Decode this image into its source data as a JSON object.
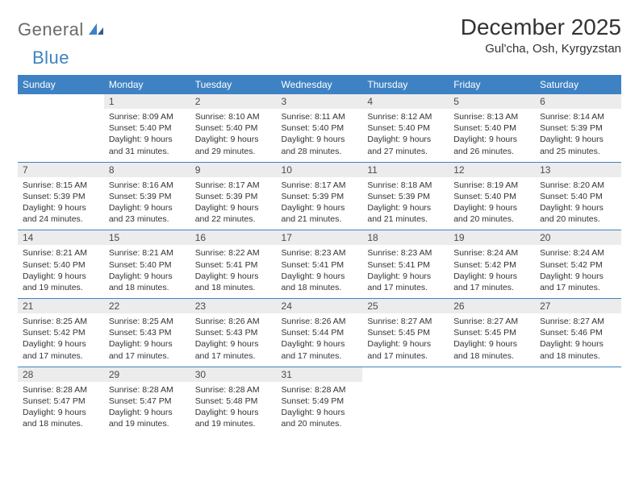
{
  "brand": {
    "part1": "General",
    "part2": "Blue"
  },
  "title": "December 2025",
  "location": "Gul'cha, Osh, Kyrgyzstan",
  "colors": {
    "header_bg": "#3e82c4",
    "header_fg": "#ffffff",
    "daynum_bg": "#ececec",
    "daynum_fg": "#4a4a4a",
    "row_border": "#3e82c4",
    "text": "#333333",
    "logo_gray": "#6a6a6a",
    "logo_blue": "#3e82c4"
  },
  "weekdays": [
    "Sunday",
    "Monday",
    "Tuesday",
    "Wednesday",
    "Thursday",
    "Friday",
    "Saturday"
  ],
  "start_offset": 1,
  "days": [
    {
      "n": 1,
      "sr": "8:09 AM",
      "ss": "5:40 PM",
      "dl": "9 hours and 31 minutes."
    },
    {
      "n": 2,
      "sr": "8:10 AM",
      "ss": "5:40 PM",
      "dl": "9 hours and 29 minutes."
    },
    {
      "n": 3,
      "sr": "8:11 AM",
      "ss": "5:40 PM",
      "dl": "9 hours and 28 minutes."
    },
    {
      "n": 4,
      "sr": "8:12 AM",
      "ss": "5:40 PM",
      "dl": "9 hours and 27 minutes."
    },
    {
      "n": 5,
      "sr": "8:13 AM",
      "ss": "5:40 PM",
      "dl": "9 hours and 26 minutes."
    },
    {
      "n": 6,
      "sr": "8:14 AM",
      "ss": "5:39 PM",
      "dl": "9 hours and 25 minutes."
    },
    {
      "n": 7,
      "sr": "8:15 AM",
      "ss": "5:39 PM",
      "dl": "9 hours and 24 minutes."
    },
    {
      "n": 8,
      "sr": "8:16 AM",
      "ss": "5:39 PM",
      "dl": "9 hours and 23 minutes."
    },
    {
      "n": 9,
      "sr": "8:17 AM",
      "ss": "5:39 PM",
      "dl": "9 hours and 22 minutes."
    },
    {
      "n": 10,
      "sr": "8:17 AM",
      "ss": "5:39 PM",
      "dl": "9 hours and 21 minutes."
    },
    {
      "n": 11,
      "sr": "8:18 AM",
      "ss": "5:39 PM",
      "dl": "9 hours and 21 minutes."
    },
    {
      "n": 12,
      "sr": "8:19 AM",
      "ss": "5:40 PM",
      "dl": "9 hours and 20 minutes."
    },
    {
      "n": 13,
      "sr": "8:20 AM",
      "ss": "5:40 PM",
      "dl": "9 hours and 20 minutes."
    },
    {
      "n": 14,
      "sr": "8:21 AM",
      "ss": "5:40 PM",
      "dl": "9 hours and 19 minutes."
    },
    {
      "n": 15,
      "sr": "8:21 AM",
      "ss": "5:40 PM",
      "dl": "9 hours and 18 minutes."
    },
    {
      "n": 16,
      "sr": "8:22 AM",
      "ss": "5:41 PM",
      "dl": "9 hours and 18 minutes."
    },
    {
      "n": 17,
      "sr": "8:23 AM",
      "ss": "5:41 PM",
      "dl": "9 hours and 18 minutes."
    },
    {
      "n": 18,
      "sr": "8:23 AM",
      "ss": "5:41 PM",
      "dl": "9 hours and 17 minutes."
    },
    {
      "n": 19,
      "sr": "8:24 AM",
      "ss": "5:42 PM",
      "dl": "9 hours and 17 minutes."
    },
    {
      "n": 20,
      "sr": "8:24 AM",
      "ss": "5:42 PM",
      "dl": "9 hours and 17 minutes."
    },
    {
      "n": 21,
      "sr": "8:25 AM",
      "ss": "5:42 PM",
      "dl": "9 hours and 17 minutes."
    },
    {
      "n": 22,
      "sr": "8:25 AM",
      "ss": "5:43 PM",
      "dl": "9 hours and 17 minutes."
    },
    {
      "n": 23,
      "sr": "8:26 AM",
      "ss": "5:43 PM",
      "dl": "9 hours and 17 minutes."
    },
    {
      "n": 24,
      "sr": "8:26 AM",
      "ss": "5:44 PM",
      "dl": "9 hours and 17 minutes."
    },
    {
      "n": 25,
      "sr": "8:27 AM",
      "ss": "5:45 PM",
      "dl": "9 hours and 17 minutes."
    },
    {
      "n": 26,
      "sr": "8:27 AM",
      "ss": "5:45 PM",
      "dl": "9 hours and 18 minutes."
    },
    {
      "n": 27,
      "sr": "8:27 AM",
      "ss": "5:46 PM",
      "dl": "9 hours and 18 minutes."
    },
    {
      "n": 28,
      "sr": "8:28 AM",
      "ss": "5:47 PM",
      "dl": "9 hours and 18 minutes."
    },
    {
      "n": 29,
      "sr": "8:28 AM",
      "ss": "5:47 PM",
      "dl": "9 hours and 19 minutes."
    },
    {
      "n": 30,
      "sr": "8:28 AM",
      "ss": "5:48 PM",
      "dl": "9 hours and 19 minutes."
    },
    {
      "n": 31,
      "sr": "8:28 AM",
      "ss": "5:49 PM",
      "dl": "9 hours and 20 minutes."
    }
  ],
  "labels": {
    "sunrise": "Sunrise:",
    "sunset": "Sunset:",
    "daylight": "Daylight:"
  }
}
